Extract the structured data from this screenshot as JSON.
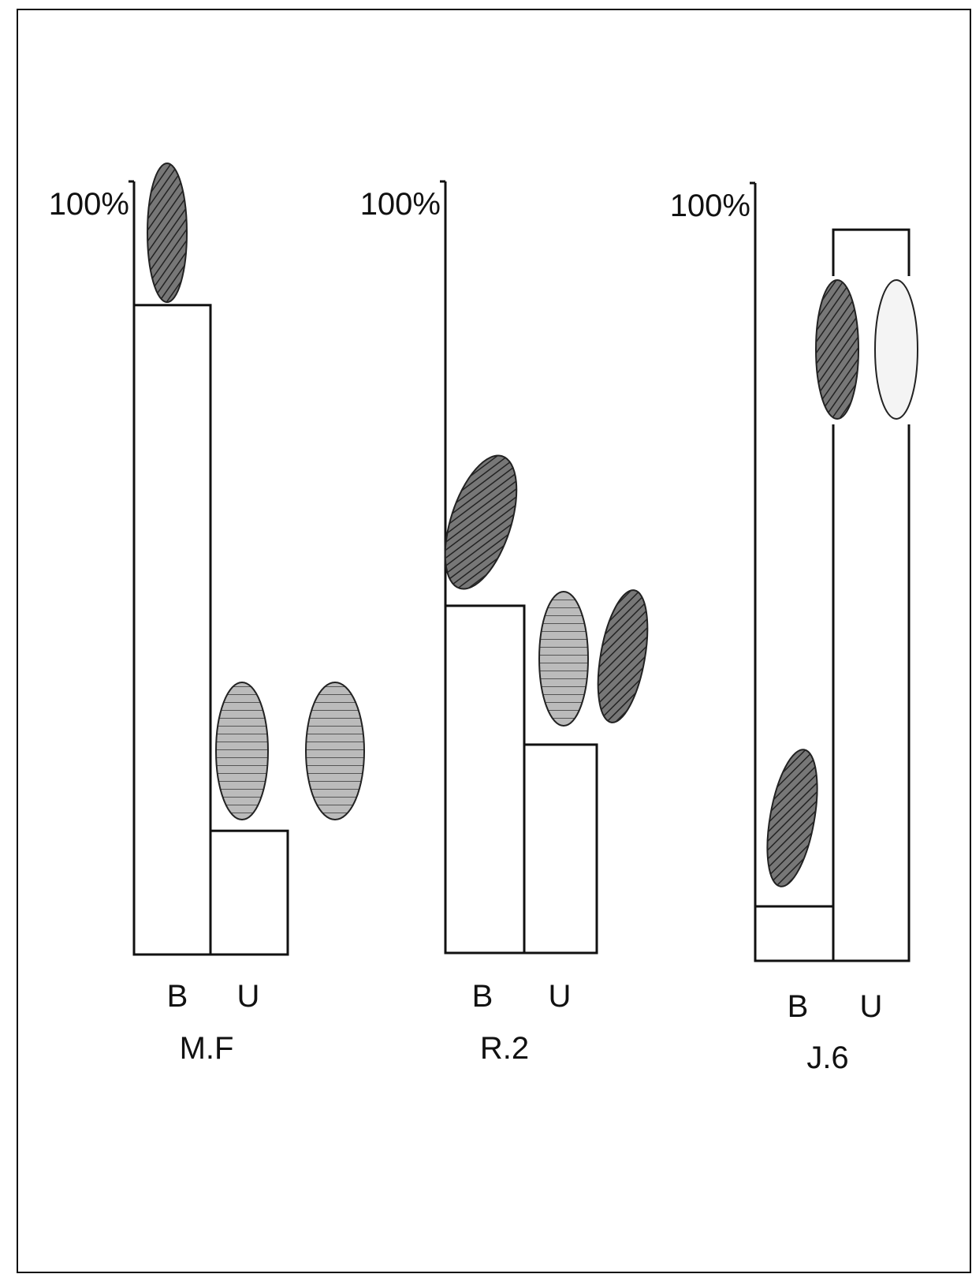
{
  "chart_data": [
    {
      "type": "bar",
      "title": "M.F",
      "categories": [
        "B",
        "U"
      ],
      "values": [
        84,
        16
      ],
      "color": "#ffffff",
      "ylim": [
        0,
        100
      ],
      "yticks": [
        {
          "value": 100,
          "label": "100%"
        }
      ]
    },
    {
      "type": "bar",
      "title": "R.2",
      "categories": [
        "B",
        "U"
      ],
      "values": [
        45,
        27
      ],
      "color": "#ffffff",
      "ylim": [
        0,
        100
      ],
      "yticks": [
        {
          "value": 100,
          "label": "100%"
        }
      ]
    },
    {
      "type": "bar",
      "title": "J.6",
      "categories": [
        "B",
        "U"
      ],
      "values": [
        7,
        94
      ],
      "color": "#ffffff",
      "ylim": [
        0,
        100
      ],
      "yticks": [
        {
          "value": 100,
          "label": "100%"
        }
      ]
    }
  ]
}
